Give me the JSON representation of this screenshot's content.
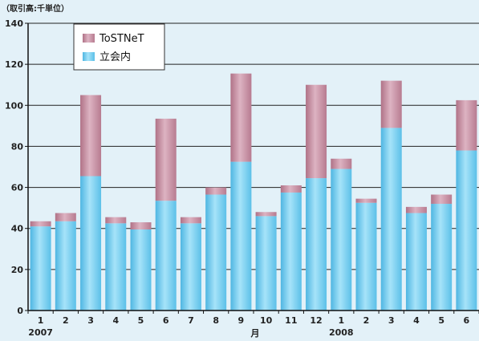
{
  "chart_data": {
    "type": "bar",
    "stacked": true,
    "unit_label": "（取引高:千単位）",
    "xlabel": "月",
    "categories": [
      "1",
      "2",
      "3",
      "4",
      "5",
      "6",
      "7",
      "8",
      "9",
      "10",
      "11",
      "12",
      "1",
      "2",
      "3",
      "4",
      "5",
      "6"
    ],
    "year_labels": [
      {
        "label": "2007",
        "category_index": 0
      },
      {
        "label": "2008",
        "category_index": 12
      }
    ],
    "series": [
      {
        "name": "立会内",
        "color": "#74cdef",
        "values": [
          41,
          43.5,
          65.5,
          42.5,
          39.5,
          53.5,
          42.5,
          56.5,
          72.5,
          46,
          57.5,
          64.5,
          69,
          52.5,
          89,
          47.5,
          52,
          78
        ]
      },
      {
        "name": "ToSTNeT",
        "color": "#c48e9f",
        "values": [
          2.5,
          4,
          39.5,
          3,
          3.5,
          40,
          3,
          3.5,
          43,
          2,
          3.5,
          45.5,
          5,
          2,
          23,
          3,
          4.5,
          24.5
        ]
      }
    ],
    "ylim": [
      0,
      140
    ],
    "yticks": [
      0,
      20,
      40,
      60,
      80,
      100,
      120,
      140
    ],
    "grid": true,
    "legend_position": "top-left"
  }
}
